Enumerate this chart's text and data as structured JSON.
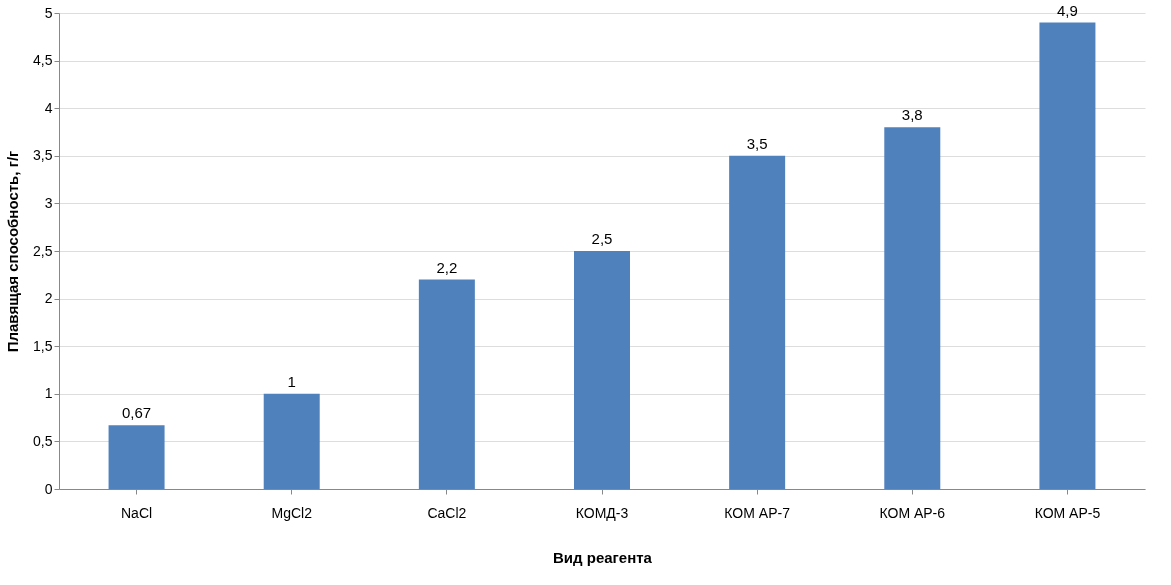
{
  "chart_data": {
    "type": "bar",
    "xlabel": "Вид реагента",
    "ylabel": "Плавящая способность, г/г",
    "categories": [
      "NaCl",
      "MgCl2",
      "CaCl2",
      "КОМД-3",
      "КОМ АР-7",
      "КОМ АР-6",
      "КОМ АР-5"
    ],
    "values": [
      0.67,
      1,
      2.2,
      2.5,
      3.5,
      3.8,
      4.9
    ],
    "value_labels": [
      "0,67",
      "1",
      "2,2",
      "2,5",
      "3,5",
      "3,8",
      "4,9"
    ],
    "color": "#4f81bd",
    "ylim": [
      0,
      5
    ],
    "yticks": [
      0,
      {
        "value": 0.5,
        "label": "0,5"
      },
      1,
      {
        "value": 1.5,
        "label": "1,5"
      },
      2,
      {
        "value": 2.5,
        "label": "2,5"
      },
      3,
      {
        "value": 3.5,
        "label": "3,5"
      },
      4,
      {
        "value": 4.5,
        "label": "4,5"
      },
      5
    ],
    "grid": "y"
  }
}
